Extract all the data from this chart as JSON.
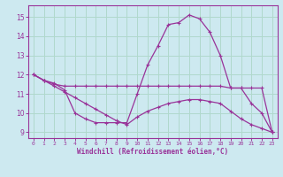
{
  "background_color": "#cde9f0",
  "grid_color": "#b0d8cc",
  "line_color": "#993399",
  "xlabel": "Windchill (Refroidissement éolien,°C)",
  "xlim": [
    -0.5,
    23.5
  ],
  "ylim": [
    8.7,
    15.6
  ],
  "yticks": [
    9,
    10,
    11,
    12,
    13,
    14,
    15
  ],
  "xticks": [
    0,
    1,
    2,
    3,
    4,
    5,
    6,
    7,
    8,
    9,
    10,
    11,
    12,
    13,
    14,
    15,
    16,
    17,
    18,
    19,
    20,
    21,
    22,
    23
  ],
  "curve1_x": [
    0,
    1,
    2,
    3,
    4,
    5,
    6,
    7,
    8,
    9,
    10,
    11,
    12,
    13,
    14,
    15,
    16,
    17,
    18,
    19,
    20,
    21,
    22,
    23
  ],
  "curve1_y": [
    12.0,
    11.7,
    11.55,
    11.2,
    10.0,
    9.7,
    9.5,
    9.5,
    9.5,
    9.5,
    11.0,
    12.5,
    13.5,
    14.6,
    14.7,
    15.1,
    14.9,
    14.2,
    13.0,
    11.3,
    11.3,
    10.5,
    10.0,
    9.0
  ],
  "curve2_x": [
    0,
    1,
    2,
    3,
    4,
    5,
    6,
    7,
    8,
    9,
    10,
    11,
    12,
    13,
    14,
    15,
    16,
    17,
    18,
    19,
    20,
    21,
    22,
    23
  ],
  "curve2_y": [
    12.0,
    11.7,
    11.5,
    11.4,
    11.4,
    11.4,
    11.4,
    11.4,
    11.4,
    11.4,
    11.4,
    11.4,
    11.4,
    11.4,
    11.4,
    11.4,
    11.4,
    11.4,
    11.4,
    11.3,
    11.3,
    11.3,
    11.3,
    9.0
  ],
  "curve3_x": [
    0,
    1,
    2,
    3,
    4,
    5,
    6,
    7,
    8,
    9,
    10,
    11,
    12,
    13,
    14,
    15,
    16,
    17,
    18,
    19,
    20,
    21,
    22,
    23
  ],
  "curve3_y": [
    12.0,
    11.7,
    11.4,
    11.1,
    10.8,
    10.5,
    10.2,
    9.9,
    9.6,
    9.4,
    9.8,
    10.1,
    10.3,
    10.5,
    10.6,
    10.7,
    10.7,
    10.6,
    10.5,
    10.1,
    9.7,
    9.4,
    9.2,
    9.0
  ]
}
